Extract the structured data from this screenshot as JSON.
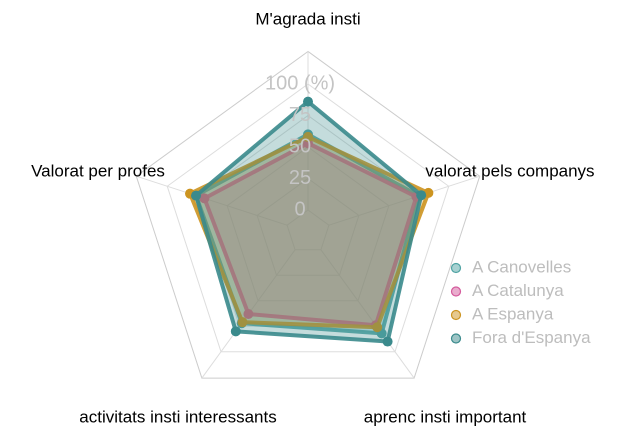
{
  "chart_data": {
    "type": "radar",
    "categories": [
      "M'agrada insti",
      "valorat pels companys",
      "aprenc insti important",
      "activitats insti interessants",
      "Valorat per profes"
    ],
    "series": [
      {
        "name": "A Canovelles",
        "color": "#4fa3a3",
        "values": [
          60,
          75,
          82,
          72,
          76
        ]
      },
      {
        "name": "A Catalunya",
        "color": "#d45a9c",
        "values": [
          53,
          73,
          74,
          63,
          69
        ]
      },
      {
        "name": "A Espanya",
        "color": "#cc9420",
        "values": [
          58,
          83,
          76,
          71,
          81
        ]
      },
      {
        "name": "Fora d'Espanya",
        "color": "#3a8a8c",
        "values": [
          86,
          77,
          90,
          80,
          76
        ]
      }
    ],
    "ylim": [
      0,
      100
    ],
    "yticks": [
      0,
      25,
      50,
      75,
      {
        "value": 100,
        "label": "100 (%)"
      }
    ],
    "grid": true,
    "legend": "bottom-right"
  }
}
